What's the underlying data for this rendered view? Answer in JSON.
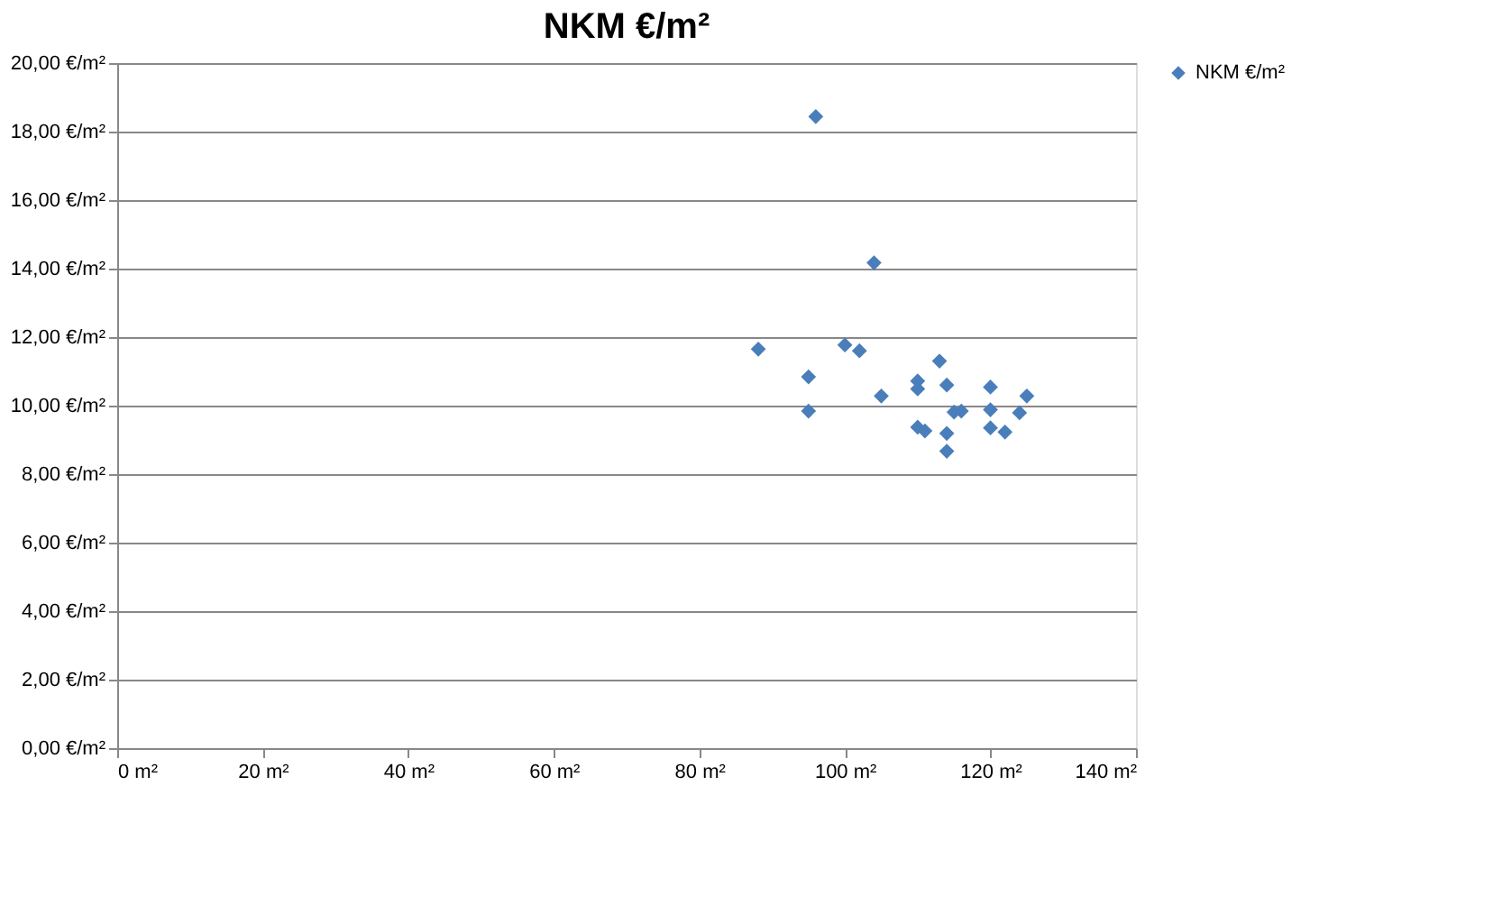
{
  "chart_data": {
    "type": "scatter",
    "title": "NKM €/m²",
    "marker": "diamond",
    "grid": "y",
    "legend": "right",
    "x": [
      88.1,
      95,
      95,
      96,
      104,
      100,
      102,
      105,
      110,
      110,
      110,
      111,
      113,
      114,
      114,
      114,
      115,
      116,
      120,
      120,
      120,
      122,
      124,
      125
    ],
    "series": [
      {
        "name": "NKM €/m²",
        "color": "#4a7ebb",
        "values": [
          11.65,
          10.84,
          9.84,
          18.44,
          14.17,
          11.77,
          11.6,
          10.28,
          10.72,
          10.49,
          9.37,
          9.26,
          11.3,
          10.6,
          9.19,
          8.67,
          9.81,
          9.84,
          10.54,
          9.88,
          9.35,
          9.23,
          9.79,
          10.28
        ]
      }
    ],
    "xlim": [
      0,
      140
    ],
    "ylim": [
      0,
      20
    ],
    "xticks": [
      {
        "value": 0,
        "label": "0 m²"
      },
      {
        "value": 20,
        "label": "20 m²"
      },
      {
        "value": 40,
        "label": "40 m²"
      },
      {
        "value": 60,
        "label": "60 m²"
      },
      {
        "value": 80,
        "label": "80 m²"
      },
      {
        "value": 100,
        "label": "100 m²"
      },
      {
        "value": 120,
        "label": "120 m²"
      },
      {
        "value": 140,
        "label": "140 m²"
      }
    ],
    "yticks": [
      {
        "value": 0,
        "label": "0,00 €/m²"
      },
      {
        "value": 2,
        "label": "2,00 €/m²"
      },
      {
        "value": 4,
        "label": "4,00 €/m²"
      },
      {
        "value": 6,
        "label": "6,00 €/m²"
      },
      {
        "value": 8,
        "label": "8,00 €/m²"
      },
      {
        "value": 10,
        "label": "10,00 €/m²"
      },
      {
        "value": 12,
        "label": "12,00 €/m²"
      },
      {
        "value": 14,
        "label": "14,00 €/m²"
      },
      {
        "value": 16,
        "label": "16,00 €/m²"
      },
      {
        "value": 18,
        "label": "18,00 €/m²"
      },
      {
        "value": 20,
        "label": "20,00 €/m²"
      }
    ]
  }
}
